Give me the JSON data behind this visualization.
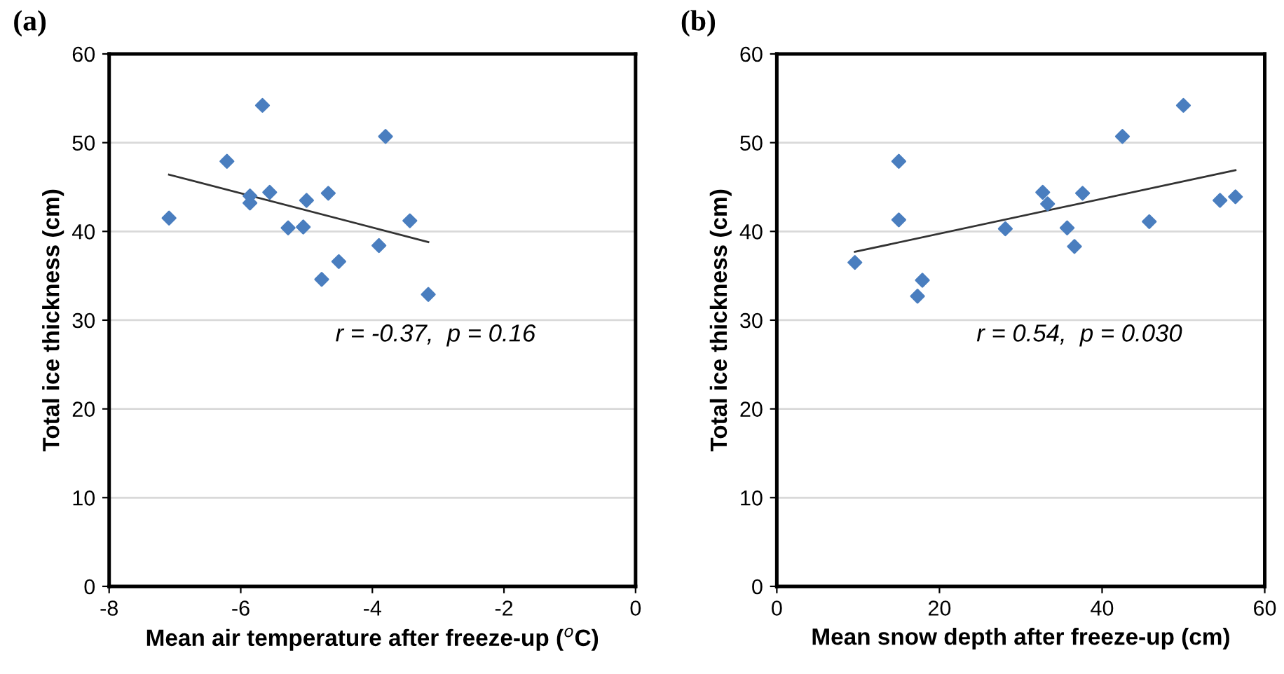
{
  "chart_data": [
    {
      "type": "scatter",
      "title": "(a)",
      "xlabel": "Mean air temperature after freeze-up ($^{o}$C)",
      "ylabel": "Total ice thickness (cm)",
      "xlim": [
        -8,
        0
      ],
      "xticks": [
        -8,
        -6,
        -4,
        -2,
        0
      ],
      "ylim": [
        0,
        60
      ],
      "yticks": [
        0,
        10,
        20,
        30,
        40,
        50,
        60
      ],
      "grid": "y",
      "legend": false,
      "marker": "diamond",
      "annotations": [
        "r = -0.37,  p = 0.16"
      ],
      "series": [
        {
          "color": "#4a7ebf",
          "x": [
            -7.09,
            -6.21,
            -5.67,
            -5.86,
            -5.86,
            -5.56,
            -5.28,
            -5.05,
            -5.0,
            -4.67,
            -4.77,
            -4.51,
            -3.8,
            -3.9,
            -3.43,
            -3.15
          ],
          "values": [
            41.5,
            47.9,
            54.2,
            44.0,
            43.2,
            44.4,
            40.4,
            40.5,
            43.5,
            44.3,
            34.6,
            36.6,
            50.7,
            38.4,
            41.2,
            32.9
          ]
        },
        {
          "type": "line",
          "color": "#333333",
          "marker": "none",
          "x": [
            -7.09,
            -3.15
          ],
          "values": [
            46.4,
            38.8
          ]
        }
      ]
    },
    {
      "type": "scatter",
      "title": "(b)",
      "xlabel": "Mean snow depth after freeze-up (cm)",
      "ylabel": "Total ice thickness (cm)",
      "xlim": [
        0,
        60
      ],
      "xticks": [
        0,
        20,
        40,
        60
      ],
      "ylim": [
        0,
        60
      ],
      "yticks": [
        0,
        10,
        20,
        30,
        40,
        50,
        60
      ],
      "grid": "y",
      "legend": false,
      "marker": "diamond",
      "annotations": [
        "r = 0.54,  p = 0.030"
      ],
      "series": [
        {
          "color": "#4a7ebf",
          "x": [
            9.6,
            15.0,
            15.0,
            17.3,
            17.9,
            28.1,
            32.7,
            33.3,
            35.7,
            36.6,
            37.6,
            42.5,
            45.8,
            50.0,
            54.5,
            56.4
          ],
          "values": [
            36.5,
            47.9,
            41.3,
            32.7,
            34.5,
            40.3,
            44.4,
            43.1,
            40.4,
            38.3,
            44.3,
            50.7,
            41.1,
            54.2,
            43.5,
            43.9
          ]
        },
        {
          "type": "line",
          "color": "#333333",
          "marker": "none",
          "x": [
            9.6,
            56.4
          ],
          "values": [
            37.7,
            46.9
          ]
        }
      ]
    }
  ]
}
